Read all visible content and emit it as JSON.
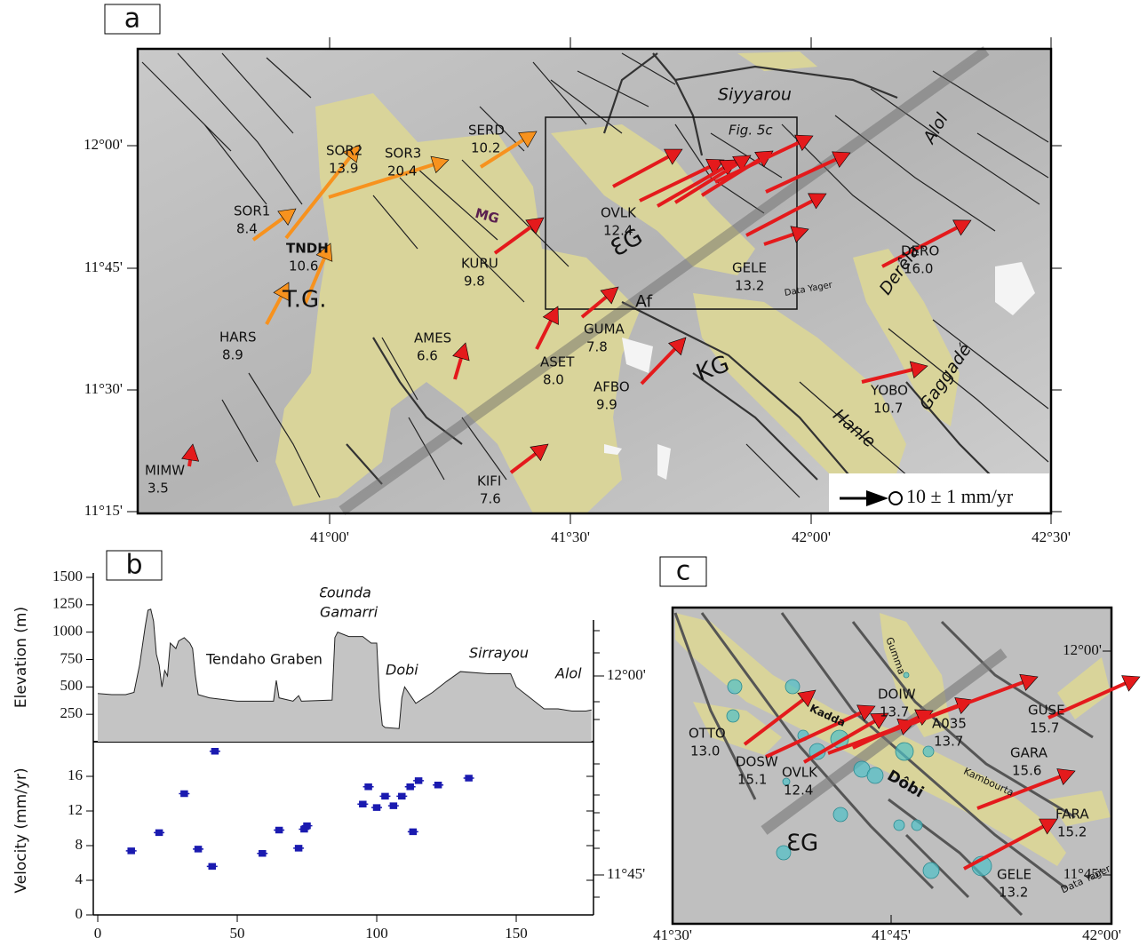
{
  "panel_a": {
    "label": "a",
    "xticks": [
      "41°00'",
      "41°30'",
      "42°00'",
      "42°30'"
    ],
    "yticks": [
      "12°00'",
      "11°45'",
      "11°30'",
      "11°15'"
    ],
    "stations": [
      {
        "name": "SOR2",
        "velocity": "13.9"
      },
      {
        "name": "SOR3",
        "velocity": "20.4"
      },
      {
        "name": "SERD",
        "velocity": "10.2"
      },
      {
        "name": "SOR1",
        "velocity": "8.4"
      },
      {
        "name": "TNDH",
        "velocity": "10.6"
      },
      {
        "name": "HARS",
        "velocity": "8.9"
      },
      {
        "name": "KURU",
        "velocity": "9.8"
      },
      {
        "name": "OVLK",
        "velocity": "12.4"
      },
      {
        "name": "AMES",
        "velocity": "6.6"
      },
      {
        "name": "ASET",
        "velocity": "8.0"
      },
      {
        "name": "GUMA",
        "velocity": "7.8"
      },
      {
        "name": "AFBO",
        "velocity": "9.9"
      },
      {
        "name": "GELE",
        "velocity": "13.2"
      },
      {
        "name": "DERO",
        "velocity": "16.0"
      },
      {
        "name": "YOBO",
        "velocity": "10.7"
      },
      {
        "name": "KIFI",
        "velocity": "7.6"
      },
      {
        "name": "MIMW",
        "velocity": "3.5"
      }
    ],
    "labels": [
      "Siyyarou",
      "Alol",
      "Fig. 5c",
      "MG",
      "ƐG",
      "Af",
      "T.G.",
      "KG",
      "Derêla",
      "Data Yager",
      "Hanle",
      "Gaggadé"
    ],
    "scale": "10 ± 1 mm/yr"
  },
  "panel_b": {
    "label": "b",
    "lat_ticks": [
      "12°00'",
      "11°45'"
    ]
  },
  "chart_data": [
    {
      "type": "area",
      "y_label": "Elevation (m)",
      "x": [
        0,
        5,
        10,
        13,
        15,
        17,
        18,
        19,
        20,
        21,
        22,
        23,
        24,
        25,
        26,
        28,
        29,
        31,
        33,
        34,
        35,
        36,
        40,
        50,
        60,
        63,
        64,
        65,
        70,
        72,
        73,
        84,
        85,
        86,
        90,
        95,
        98,
        100,
        101,
        102,
        103,
        108,
        109,
        110,
        114,
        120,
        125,
        130,
        140,
        148,
        150,
        155,
        160,
        165,
        170,
        175,
        177
      ],
      "values": [
        440,
        430,
        430,
        450,
        700,
        1050,
        1200,
        1210,
        1100,
        800,
        700,
        500,
        650,
        600,
        900,
        850,
        920,
        950,
        900,
        850,
        600,
        430,
        400,
        370,
        370,
        370,
        560,
        400,
        370,
        420,
        370,
        380,
        950,
        1000,
        960,
        960,
        900,
        900,
        400,
        150,
        130,
        120,
        400,
        500,
        350,
        450,
        550,
        640,
        620,
        620,
        500,
        400,
        300,
        300,
        280,
        280,
        290
      ],
      "color": "#c4c4c4",
      "xlim": [
        -1.6,
        177.7
      ],
      "ylim": [
        0,
        1500
      ],
      "yticks": [
        250,
        500,
        750,
        1000,
        1250,
        1500
      ],
      "annotations": [
        "Tendaho Graben",
        "Ɛounda",
        "Gamarri",
        "Dobi",
        "Sirrayou",
        "Alol"
      ]
    },
    {
      "type": "scatter",
      "y_label": "Velocity (mm/yr)",
      "x": [
        12,
        22,
        31,
        36,
        41,
        42,
        59,
        65,
        72,
        74,
        75,
        95,
        97,
        100,
        103,
        106,
        109,
        112,
        113,
        115,
        122,
        133
      ],
      "values": [
        7.4,
        9.5,
        14,
        7.6,
        5.6,
        18.9,
        7.1,
        9.8,
        7.7,
        9.9,
        10.3,
        12.8,
        14.8,
        12.4,
        13.7,
        12.6,
        13.7,
        14.8,
        9.6,
        15.5,
        15,
        15.8
      ],
      "color": "#1a1ab0",
      "xlim": [
        -1.6,
        177.7
      ],
      "xticks": [
        0,
        50,
        100,
        150
      ],
      "ylim": [
        0,
        20
      ],
      "yticks": [
        0,
        4,
        8,
        12,
        16
      ]
    }
  ],
  "panel_c": {
    "label": "c",
    "xticks": [
      "41°30'",
      "41°45'",
      "42°00'"
    ],
    "yticks": [
      "12°00'",
      "11°45'"
    ],
    "stations": [
      {
        "name": "OTTO",
        "velocity": "13.0"
      },
      {
        "name": "DOSW",
        "velocity": "15.1"
      },
      {
        "name": "OVLK",
        "velocity": "12.4"
      },
      {
        "name": "DOIW",
        "velocity": "13.7"
      },
      {
        "name": "A035",
        "velocity": "13.7"
      },
      {
        "name": "GUSE",
        "velocity": "15.7"
      },
      {
        "name": "GARA",
        "velocity": "15.6"
      },
      {
        "name": "FARA",
        "velocity": "15.2"
      },
      {
        "name": "GELE",
        "velocity": "13.2"
      }
    ],
    "labels": [
      "Kadda",
      "Gumma",
      "Dôbi",
      "Kambourta",
      "Data Yager",
      "ƐG"
    ]
  }
}
